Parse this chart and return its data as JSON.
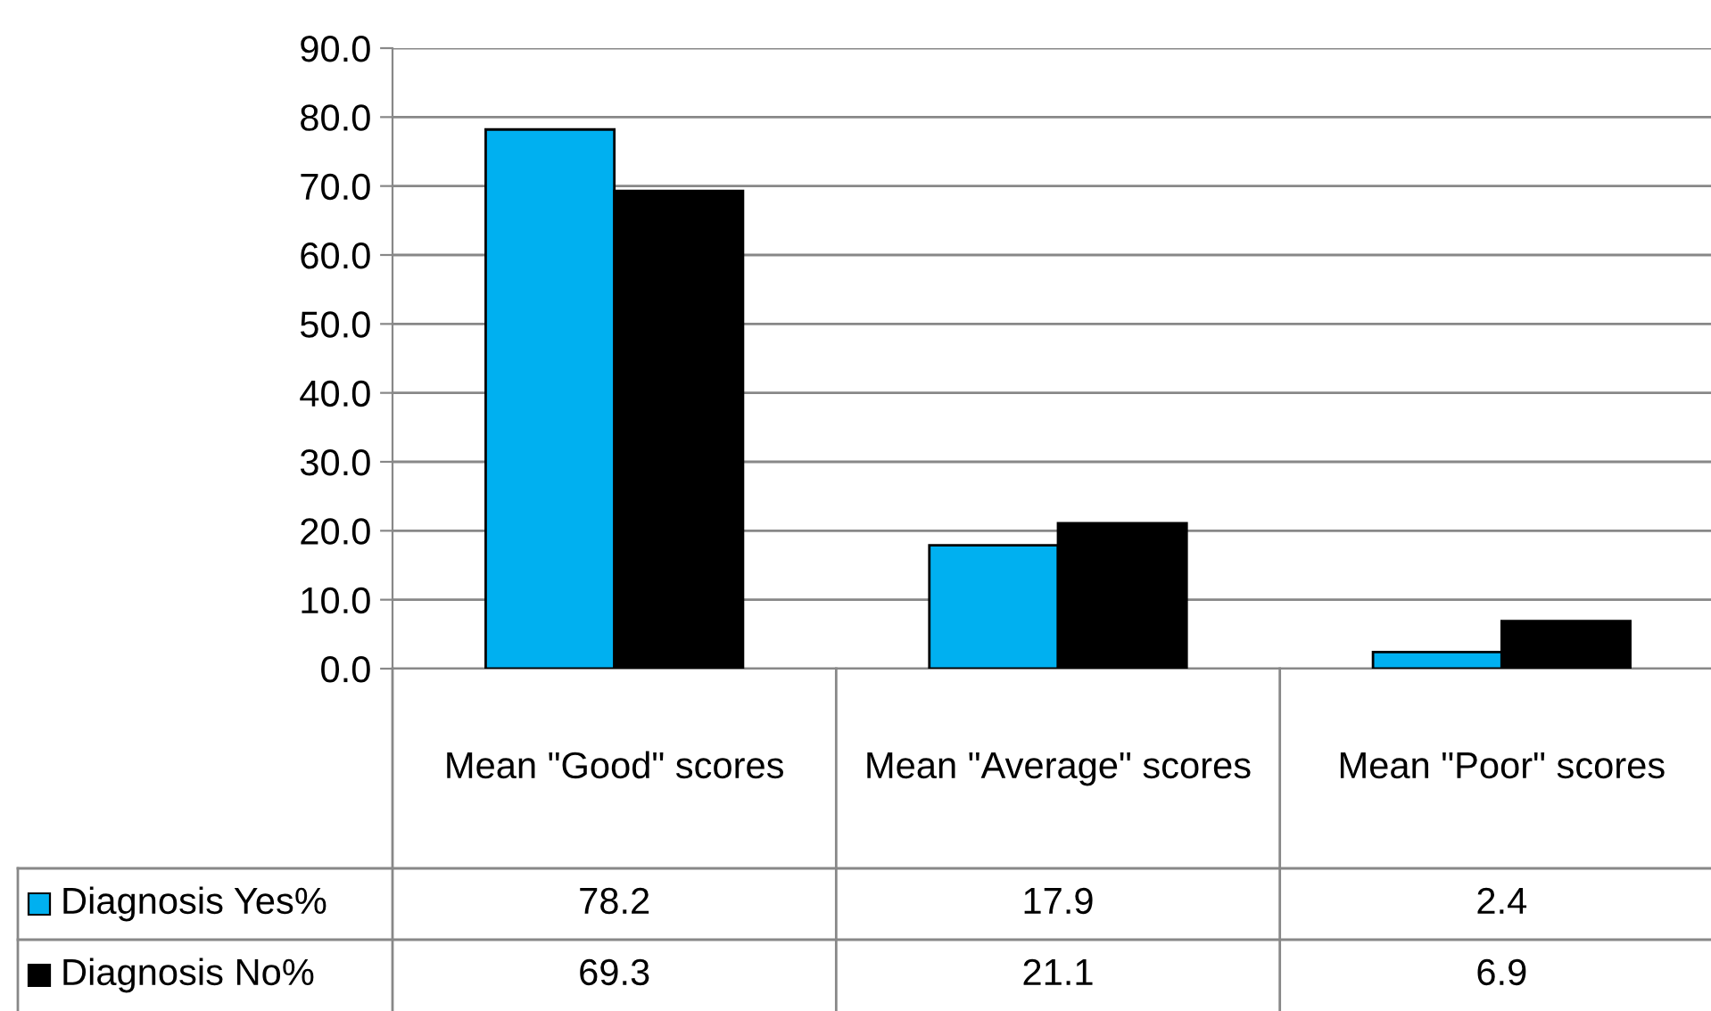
{
  "chart_data": {
    "type": "bar",
    "categories": [
      "Mean \"Good\" scores",
      "Mean \"Average\" scores",
      "Mean \"Poor\" scores"
    ],
    "series": [
      {
        "name": "Diagnosis Yes%",
        "color": "#00b0f0",
        "values": [
          78.2,
          17.9,
          2.4
        ]
      },
      {
        "name": "Diagnosis No%",
        "color": "#000000",
        "values": [
          69.3,
          21.1,
          6.9
        ]
      }
    ],
    "ylim": [
      0,
      90
    ],
    "yticks": [
      {
        "value": 0,
        "label": "0.0"
      },
      {
        "value": 10,
        "label": "10.0"
      },
      {
        "value": 20,
        "label": "20.0"
      },
      {
        "value": 30,
        "label": "30.0"
      },
      {
        "value": 40,
        "label": "40.0"
      },
      {
        "value": 50,
        "label": "50.0"
      },
      {
        "value": 60,
        "label": "60.0"
      },
      {
        "value": 70,
        "label": "70.0"
      },
      {
        "value": 80,
        "label": "80.0"
      },
      {
        "value": 90,
        "label": "90.0"
      }
    ],
    "grid": "y",
    "legend": "bottom",
    "data_labels": true
  }
}
